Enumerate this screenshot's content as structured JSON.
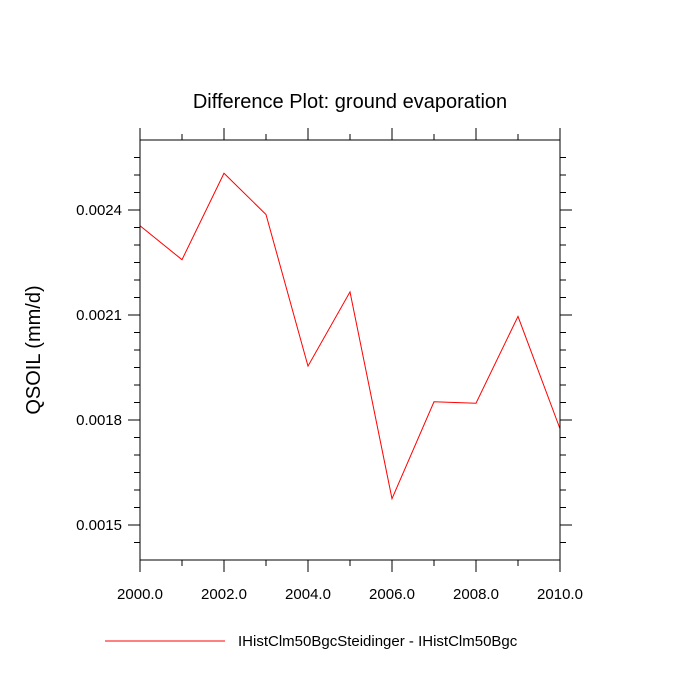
{
  "chart_data": {
    "type": "line",
    "title": "Difference Plot: ground evaporation",
    "xlabel": "",
    "ylabel": "QSOIL  (mm/d)",
    "x": [
      2000,
      2001,
      2002,
      2003,
      2004,
      2005,
      2006,
      2007,
      2008,
      2009,
      2010
    ],
    "series": [
      {
        "name": "IHistClm50BgcSteidinger - IHistClm50Bgc",
        "color": "#ff0000",
        "values": [
          0.002355,
          0.002258,
          0.002505,
          0.002387,
          0.001954,
          0.002166,
          0.001575,
          0.001852,
          0.001848,
          0.002096,
          0.001775
        ]
      }
    ],
    "xlim": [
      2000,
      2010
    ],
    "ylim": [
      0.0014,
      0.0026
    ],
    "xticks": [
      2000,
      2002,
      2004,
      2006,
      2008,
      2010
    ],
    "xtick_labels": [
      "2000.0",
      "2002.0",
      "2004.0",
      "2006.0",
      "2008.0",
      "2010.0"
    ],
    "yticks": [
      0.0015,
      0.0018,
      0.0021,
      0.0024
    ],
    "ytick_labels": [
      "0.0015",
      "0.0018",
      "0.0021",
      "0.0024"
    ],
    "grid": false,
    "legend_position": "bottom"
  }
}
